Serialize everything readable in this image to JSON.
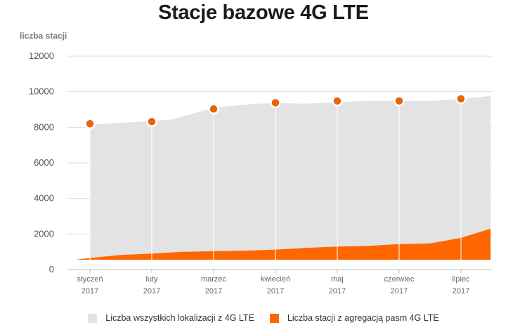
{
  "chart_data": {
    "type": "area",
    "title": "Stacje bazowe 4G LTE",
    "ylabel": "liczba stacji",
    "xlabel": "",
    "ylim": [
      0,
      12000
    ],
    "yticks": [
      0,
      2000,
      4000,
      6000,
      8000,
      10000,
      12000
    ],
    "grid": true,
    "legend_position": "bottom",
    "categories": [
      {
        "month": "styczeń",
        "year": "2017"
      },
      {
        "month": "luty",
        "year": "2017"
      },
      {
        "month": "marzec",
        "year": "2017"
      },
      {
        "month": "kwiecień",
        "year": "2017"
      },
      {
        "month": "maj",
        "year": "2017"
      },
      {
        "month": "czerwiec",
        "year": "2017"
      },
      {
        "month": "lipiec",
        "year": "2017"
      }
    ],
    "series": [
      {
        "name": "Liczba wszystkich lokalizacji z 4G LTE",
        "color": "#e3e3e3",
        "x": [
          0,
          1,
          1.35,
          2,
          2.6,
          3,
          3.45,
          4,
          4.45,
          5,
          5.55,
          6,
          6.48
        ],
        "values": [
          8150,
          8350,
          8450,
          9100,
          9300,
          9380,
          9320,
          9420,
          9480,
          9480,
          9480,
          9600,
          9760
        ]
      },
      {
        "name": "Liczba stacji z agregacją pasm 4G LTE",
        "color": "#ff6600",
        "x": [
          -0.25,
          0,
          0.5,
          1,
          1.5,
          2,
          2.5,
          3,
          3.5,
          4,
          4.5,
          5,
          5.5,
          6,
          6.48
        ],
        "values": [
          550,
          650,
          820,
          900,
          1000,
          1030,
          1060,
          1120,
          1220,
          1290,
          1330,
          1430,
          1470,
          1780,
          2300
        ]
      }
    ],
    "markers": {
      "series": "Liczba wszystkich lokalizacji z 4G LTE",
      "color": "#e8630a",
      "values": [
        8200,
        8320,
        9030,
        9380,
        9480,
        9480,
        9600
      ]
    }
  }
}
